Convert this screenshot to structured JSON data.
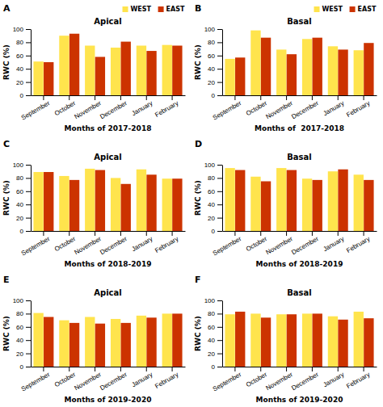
{
  "chart_data": [
    {
      "type": "bar",
      "title": "Apical",
      "annotations": [
        "A"
      ],
      "xlabel": "Months of 2017-2018",
      "ylabel": "RWC (%)",
      "categories": [
        "September",
        "October",
        "November",
        "December",
        "January",
        "February"
      ],
      "series": [
        {
          "name": "WEST",
          "color": "#FFE44D",
          "values": [
            51,
            90,
            75,
            72,
            75,
            76
          ]
        },
        {
          "name": "EAST",
          "color": "#CC3300",
          "values": [
            50,
            93,
            58,
            81,
            67,
            75
          ]
        }
      ],
      "ylim": [
        0,
        100
      ],
      "yticks": [
        0,
        20,
        40,
        60,
        80,
        100
      ],
      "legend": "upper right"
    },
    {
      "type": "bar",
      "title": "Basal",
      "annotations": [
        "B"
      ],
      "xlabel": "Months of  2017-2018",
      "ylabel": "RWC (%)",
      "categories": [
        "September",
        "October",
        "November",
        "December",
        "January",
        "February"
      ],
      "series": [
        {
          "name": "WEST",
          "color": "#FFE44D",
          "values": [
            55,
            98,
            69,
            85,
            74,
            68
          ]
        },
        {
          "name": "EAST",
          "color": "#CC3300",
          "values": [
            57,
            87,
            62,
            87,
            69,
            79
          ]
        }
      ],
      "ylim": [
        0,
        100
      ],
      "yticks": [
        0,
        20,
        40,
        60,
        80,
        100
      ],
      "legend": "upper right"
    },
    {
      "type": "bar",
      "title": "Apical",
      "annotations": [
        "C"
      ],
      "xlabel": "Months of 2018-2019",
      "ylabel": "RWC (%)",
      "categories": [
        "September",
        "October",
        "November",
        "December",
        "January",
        "February"
      ],
      "series": [
        {
          "name": "WEST",
          "color": "#FFE44D",
          "values": [
            89,
            83,
            94,
            80,
            93,
            79
          ]
        },
        {
          "name": "EAST",
          "color": "#CC3300",
          "values": [
            89,
            77,
            92,
            71,
            85,
            79
          ]
        }
      ],
      "ylim": [
        0,
        100
      ],
      "yticks": [
        0,
        20,
        40,
        60,
        80,
        100
      ]
    },
    {
      "type": "bar",
      "title": "Basal",
      "annotations": [
        "D"
      ],
      "xlabel": "Months of 2018-2019",
      "ylabel": "RWC (%)",
      "categories": [
        "September",
        "October",
        "November",
        "December",
        "January",
        "February"
      ],
      "series": [
        {
          "name": "WEST",
          "color": "#FFE44D",
          "values": [
            95,
            82,
            95,
            79,
            90,
            85
          ]
        },
        {
          "name": "EAST",
          "color": "#CC3300",
          "values": [
            92,
            75,
            92,
            77,
            93,
            77
          ]
        }
      ],
      "ylim": [
        0,
        100
      ],
      "yticks": [
        0,
        20,
        40,
        60,
        80,
        100
      ]
    },
    {
      "type": "bar",
      "title": "Apical",
      "annotations": [
        "E"
      ],
      "xlabel": "Months of 2019-2020",
      "ylabel": "RWC (%)",
      "categories": [
        "September",
        "October",
        "November",
        "December",
        "January",
        "February"
      ],
      "series": [
        {
          "name": "WEST",
          "color": "#FFE44D",
          "values": [
            81,
            70,
            75,
            72,
            77,
            80
          ]
        },
        {
          "name": "EAST",
          "color": "#CC3300",
          "values": [
            75,
            66,
            65,
            66,
            74,
            80
          ]
        }
      ],
      "ylim": [
        0,
        100
      ],
      "yticks": [
        0,
        20,
        40,
        60,
        80,
        100
      ]
    },
    {
      "type": "bar",
      "title": "Basal",
      "annotations": [
        "F"
      ],
      "xlabel": "Months of 2019-2020",
      "ylabel": "RWC (%)",
      "categories": [
        "September",
        "October",
        "November",
        "December",
        "January",
        "February"
      ],
      "series": [
        {
          "name": "WEST",
          "color": "#FFE44D",
          "values": [
            79,
            80,
            79,
            80,
            76,
            83
          ]
        },
        {
          "name": "EAST",
          "color": "#CC3300",
          "values": [
            83,
            74,
            79,
            80,
            71,
            73
          ]
        }
      ],
      "ylim": [
        0,
        100
      ],
      "yticks": [
        0,
        20,
        40,
        60,
        80,
        100
      ]
    }
  ]
}
